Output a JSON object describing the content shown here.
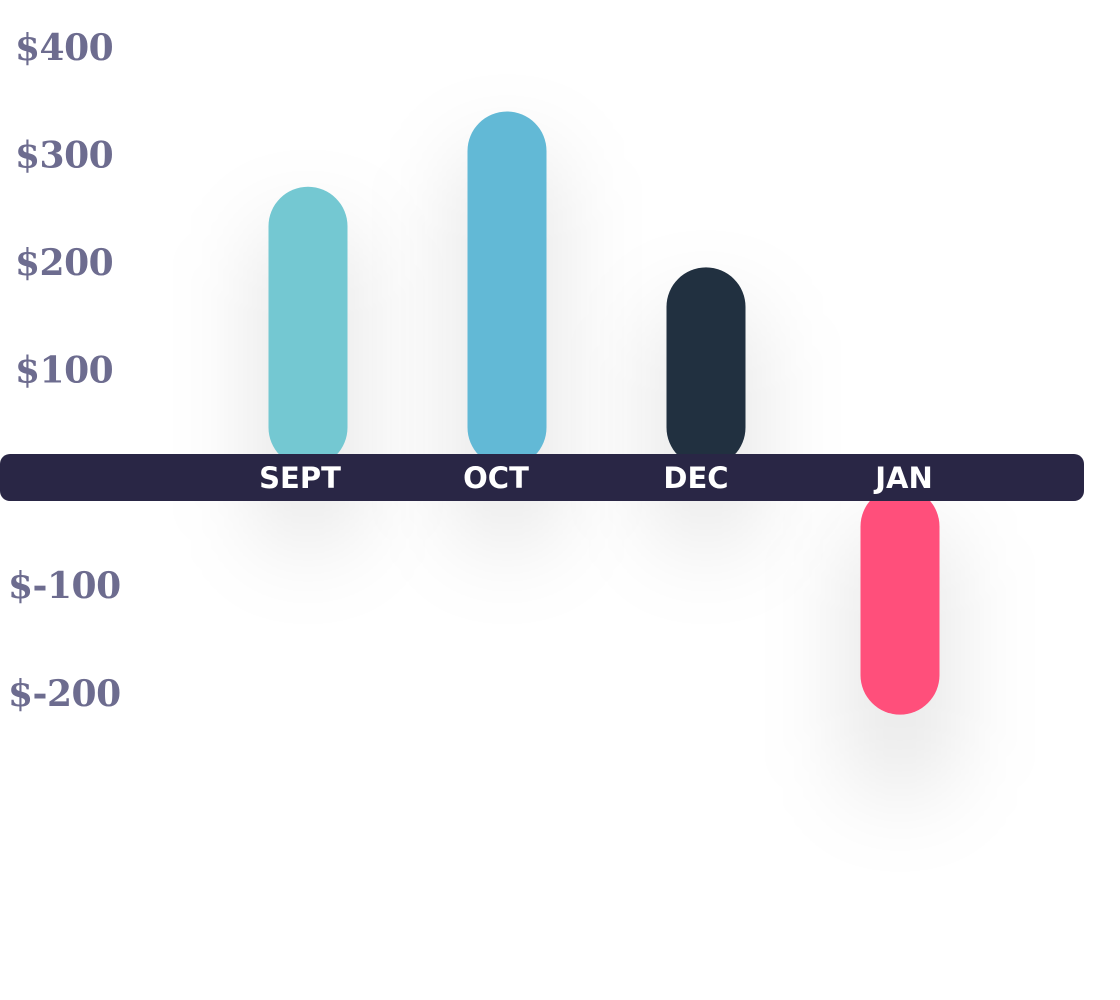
{
  "chart_data": {
    "type": "bar",
    "title": "",
    "xlabel": "",
    "ylabel": "",
    "categories": [
      "SEPT",
      "OCT",
      "DEC",
      "JAN"
    ],
    "values": [
      270,
      340,
      195,
      -220
    ],
    "ylim": [
      -200,
      400
    ],
    "yticks": [
      400,
      300,
      200,
      100,
      -100,
      -200
    ],
    "ytick_labels": [
      "$400",
      "$300",
      "$200",
      "$100",
      "$-100",
      "$-200"
    ],
    "colors": [
      "#74c8d2",
      "#62b9d6",
      "#213040",
      "#ff4f7b"
    ],
    "axis_band_color": "#292645",
    "tick_label_color": "#6d6c8f",
    "category_label_color": "#ffffff",
    "grid": false,
    "legend": "none"
  }
}
